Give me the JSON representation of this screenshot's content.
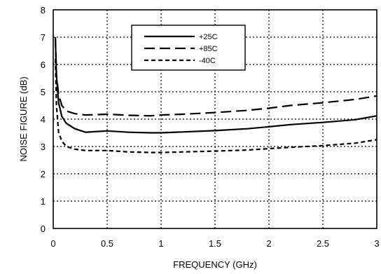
{
  "chart_data": {
    "type": "line",
    "xlabel": "FREQUENCY (GHz)",
    "ylabel": "NOISE FIGURE (dB)",
    "xlim": [
      0,
      3
    ],
    "ylim": [
      0,
      8
    ],
    "x_ticks": [
      0,
      0.5,
      1,
      1.5,
      2,
      2.5,
      3
    ],
    "x_tick_labels": [
      "0",
      "0.5",
      "1",
      "1.5",
      "2",
      "2.5",
      "3"
    ],
    "y_ticks": [
      0,
      1,
      2,
      3,
      4,
      5,
      6,
      7,
      8
    ],
    "y_tick_labels": [
      "0",
      "1",
      "2",
      "3",
      "4",
      "5",
      "6",
      "7",
      "8"
    ],
    "grid": true,
    "grid_style": "dotted",
    "legend_position": "top-center",
    "series": [
      {
        "name": "+25C",
        "line_style": "solid",
        "color": "#000000",
        "x": [
          0.02,
          0.03,
          0.05,
          0.08,
          0.12,
          0.2,
          0.3,
          0.5,
          0.7,
          0.9,
          1.0,
          1.2,
          1.5,
          1.8,
          2.0,
          2.2,
          2.5,
          2.8,
          3.0
        ],
        "y": [
          6.9,
          5.6,
          4.6,
          4.1,
          3.85,
          3.65,
          3.52,
          3.57,
          3.52,
          3.5,
          3.5,
          3.53,
          3.58,
          3.65,
          3.72,
          3.8,
          3.88,
          3.98,
          4.12
        ]
      },
      {
        "name": "+85C",
        "line_style": "dashed",
        "color": "#000000",
        "x": [
          0.02,
          0.03,
          0.05,
          0.08,
          0.12,
          0.2,
          0.3,
          0.5,
          0.7,
          0.9,
          1.0,
          1.2,
          1.5,
          1.8,
          2.0,
          2.2,
          2.5,
          2.8,
          3.0
        ],
        "y": [
          7.0,
          5.6,
          4.9,
          4.5,
          4.3,
          4.2,
          4.15,
          4.18,
          4.14,
          4.12,
          4.15,
          4.18,
          4.24,
          4.32,
          4.4,
          4.5,
          4.6,
          4.72,
          4.85
        ]
      },
      {
        "name": "-40C",
        "line_style": "short-dashed",
        "color": "#000000",
        "x": [
          0.02,
          0.03,
          0.05,
          0.08,
          0.12,
          0.2,
          0.3,
          0.5,
          0.7,
          0.9,
          1.0,
          1.2,
          1.5,
          1.8,
          2.0,
          2.2,
          2.5,
          2.8,
          3.0
        ],
        "y": [
          6.2,
          4.5,
          3.5,
          3.2,
          3.0,
          2.9,
          2.85,
          2.85,
          2.8,
          2.78,
          2.78,
          2.8,
          2.83,
          2.87,
          2.92,
          2.97,
          3.03,
          3.12,
          3.25
        ]
      }
    ]
  }
}
